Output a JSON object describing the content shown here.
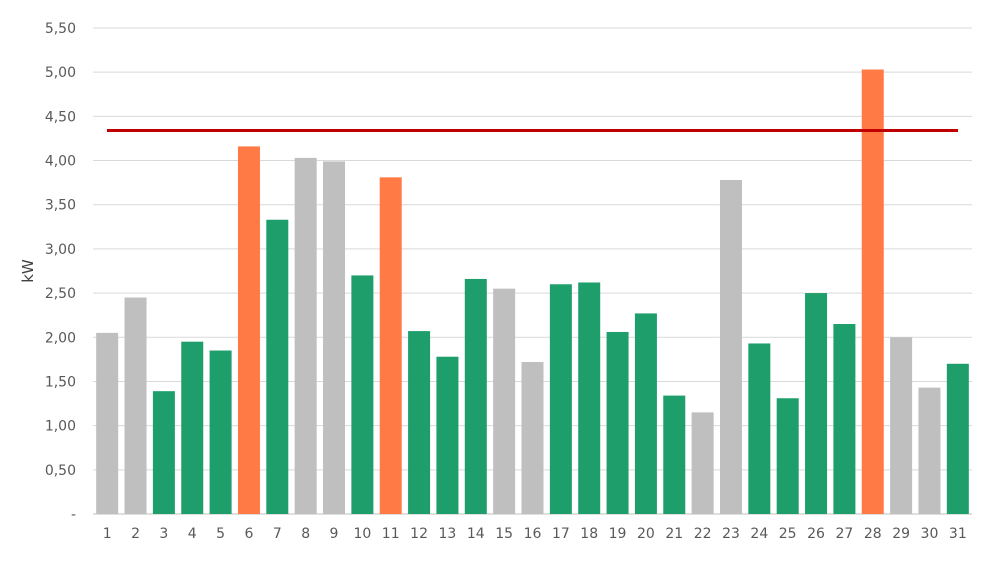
{
  "chart_data": {
    "type": "bar",
    "xlabel": "",
    "ylabel": "kW",
    "ylim": [
      0,
      5.5
    ],
    "yticks": [
      "-",
      "0,50",
      "1,00",
      "1,50",
      "2,00",
      "2,50",
      "3,00",
      "3,50",
      "4,00",
      "4,50",
      "5,00",
      "5,50"
    ],
    "grid": true,
    "categories": [
      "1",
      "2",
      "3",
      "4",
      "5",
      "6",
      "7",
      "8",
      "9",
      "10",
      "11",
      "12",
      "13",
      "14",
      "15",
      "16",
      "17",
      "18",
      "19",
      "20",
      "21",
      "22",
      "23",
      "24",
      "25",
      "26",
      "27",
      "28",
      "29",
      "30",
      "31"
    ],
    "values": [
      2.05,
      2.45,
      1.39,
      1.95,
      1.85,
      4.16,
      3.33,
      4.03,
      3.99,
      2.7,
      3.81,
      2.07,
      1.78,
      2.66,
      2.55,
      1.72,
      2.6,
      2.62,
      2.06,
      2.27,
      1.34,
      1.15,
      3.78,
      1.93,
      1.31,
      2.5,
      2.15,
      5.03,
      2.0,
      1.43,
      1.7
    ],
    "bar_colors": [
      "gray",
      "gray",
      "green",
      "green",
      "green",
      "orange",
      "green",
      "gray",
      "gray",
      "green",
      "orange",
      "green",
      "green",
      "green",
      "gray",
      "gray",
      "green",
      "green",
      "green",
      "green",
      "green",
      "gray",
      "gray",
      "green",
      "green",
      "green",
      "green",
      "orange",
      "gray",
      "gray",
      "green"
    ],
    "threshold": 4.34,
    "colors": {
      "gray": "#bfbfbf",
      "green": "#1e9e6a",
      "orange": "#ff7a45",
      "threshold": "#c00000",
      "grid": "#d9d9d9"
    }
  }
}
